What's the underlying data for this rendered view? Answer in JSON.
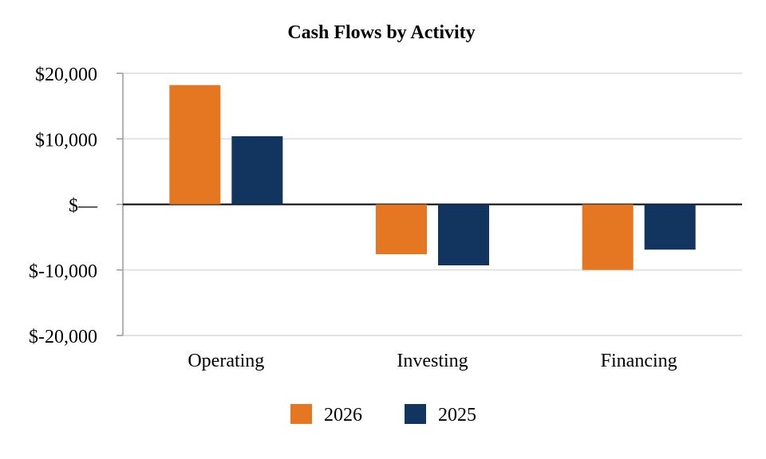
{
  "chart_data": {
    "type": "bar",
    "title": "Cash Flows by Activity",
    "xlabel": "",
    "ylabel": "",
    "categories": [
      "Operating",
      "Investing",
      "Financing"
    ],
    "series": [
      {
        "name": "2026",
        "color": "#e67722",
        "values": [
          18200,
          -7600,
          -10000
        ]
      },
      {
        "name": "2025",
        "color": "#12355f",
        "values": [
          10400,
          -9300,
          -6900
        ]
      }
    ],
    "ylim": [
      -20000,
      20000
    ],
    "yticks": [
      20000,
      10000,
      0,
      -10000,
      -20000
    ],
    "ytick_labels": [
      "$20,000",
      "$10,000",
      "$—",
      "$-10,000",
      "$-20,000"
    ],
    "grid": true,
    "legend_position": "bottom"
  }
}
